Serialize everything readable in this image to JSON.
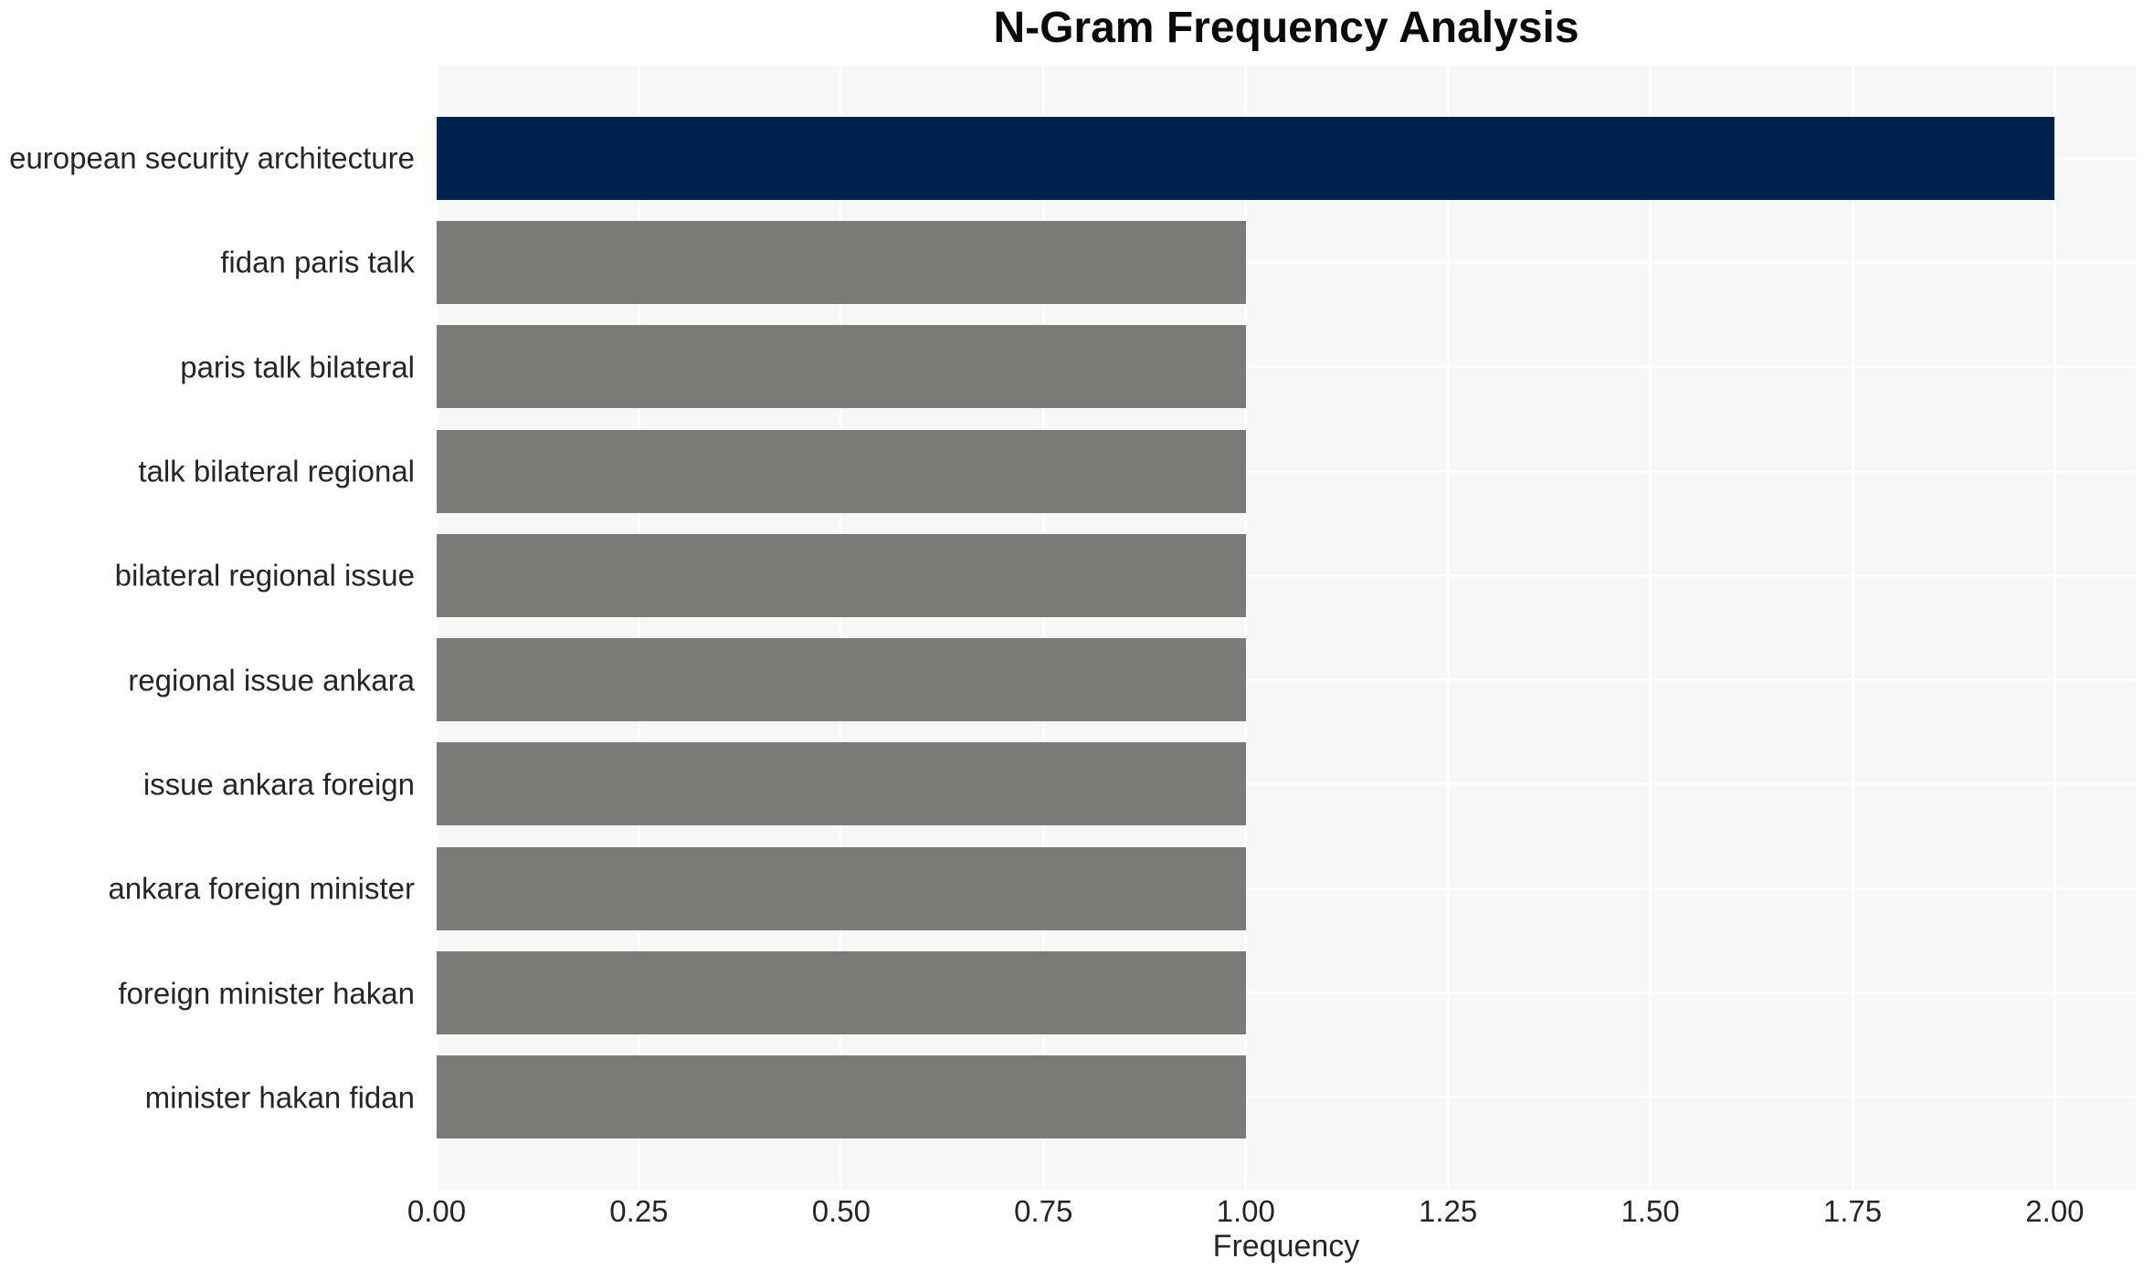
{
  "chart_data": {
    "type": "bar",
    "orientation": "horizontal",
    "title": "N-Gram Frequency Analysis",
    "xlabel": "Frequency",
    "ylabel": "",
    "categories": [
      "european security architecture",
      "fidan paris talk",
      "paris talk bilateral",
      "talk bilateral regional",
      "bilateral regional issue",
      "regional issue ankara",
      "issue ankara foreign",
      "ankara foreign minister",
      "foreign minister hakan",
      "minister hakan fidan"
    ],
    "values": [
      2,
      1,
      1,
      1,
      1,
      1,
      1,
      1,
      1,
      1
    ],
    "xlim": [
      0,
      2.1
    ],
    "x_ticks": [
      0.0,
      0.25,
      0.5,
      0.75,
      1.0,
      1.25,
      1.5,
      1.75,
      2.0
    ],
    "x_tick_labels": [
      "0.00",
      "0.25",
      "0.50",
      "0.75",
      "1.00",
      "1.25",
      "1.50",
      "1.75",
      "2.00"
    ],
    "grid": true,
    "legend": null,
    "colors": {
      "highlight_bar": "#00234e",
      "default_bar": "#7b7a76",
      "plot_background": "#f7f7f7",
      "gridline": "#ffffff",
      "text": "#262626",
      "title_text": "#0a0a0a",
      "page_background": "#ffffff"
    }
  }
}
